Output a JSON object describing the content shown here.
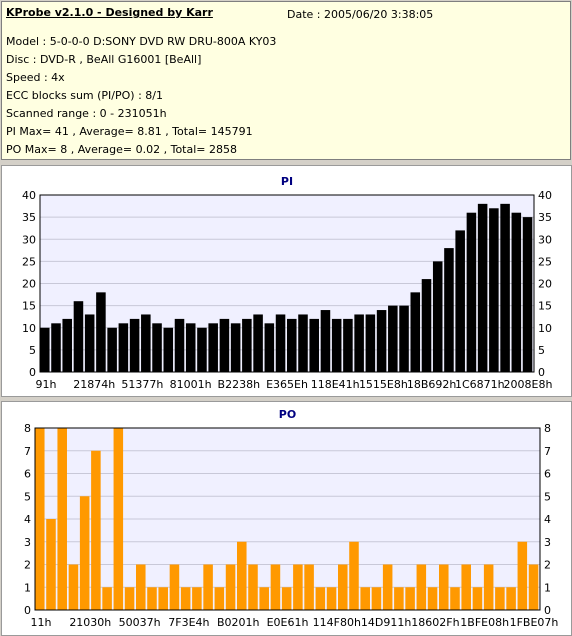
{
  "info": {
    "title": "KProbe v2.1.0 - Designed by Karr",
    "date": "Date : 2005/06/20 3:38:05",
    "lines": [
      "Model : 5-0-0-0 D:SONY    DVD RW DRU-800A  KY03",
      "Disc : DVD-R , BeAll G16001 [BeAll]",
      "Speed : 4x",
      "ECC blocks sum (PI/PO) : 8/1",
      "Scanned range : 0 - 231051h",
      "PI Max= 41 , Average= 8.81 , Total= 145791",
      "PO Max= 8 , Average= 0.02 , Total= 2858"
    ]
  },
  "colors": {
    "pi_bar": "#000000",
    "po_bar": "#ff9900",
    "plot_bg": "#f0f0ff",
    "title": "#000080"
  },
  "chart_data": [
    {
      "type": "bar",
      "title": "PI",
      "ylim": [
        0,
        40
      ],
      "yticks": [
        0,
        5,
        10,
        15,
        20,
        25,
        30,
        35,
        40
      ],
      "xticks": [
        "91h",
        "21874h",
        "51377h",
        "81001h",
        "B2238h",
        "E365Eh",
        "118E41h",
        "1515E8h",
        "18B692h",
        "1C6871h",
        "2008E8h"
      ],
      "grid": true,
      "series": [
        {
          "values": [
            10,
            11,
            12,
            16,
            13,
            18,
            10,
            11,
            12,
            13,
            11,
            10,
            12,
            11,
            10,
            11,
            12,
            11,
            12,
            13,
            11,
            13,
            12,
            13,
            12,
            14,
            12,
            12,
            13,
            13,
            14,
            15,
            15,
            18,
            21,
            25,
            28,
            32,
            36,
            38,
            37,
            38,
            36,
            35
          ]
        }
      ]
    },
    {
      "type": "bar",
      "title": "PO",
      "ylim": [
        0,
        8
      ],
      "yticks": [
        0,
        1,
        2,
        3,
        4,
        5,
        6,
        7,
        8
      ],
      "xticks": [
        "11h",
        "21030h",
        "50037h",
        "7F3E4h",
        "B0201h",
        "E0E61h",
        "114F80h",
        "14D911h",
        "18602Fh",
        "1BFE08h",
        "1FBE07h"
      ],
      "grid": true,
      "series": [
        {
          "values": [
            8,
            4,
            8,
            2,
            5,
            7,
            1,
            8,
            1,
            2,
            1,
            1,
            2,
            1,
            1,
            2,
            1,
            2,
            3,
            2,
            1,
            2,
            1,
            2,
            2,
            1,
            1,
            2,
            3,
            1,
            1,
            2,
            1,
            1,
            2,
            1,
            2,
            1,
            2,
            1,
            2,
            1,
            1,
            3,
            2
          ]
        }
      ]
    }
  ]
}
